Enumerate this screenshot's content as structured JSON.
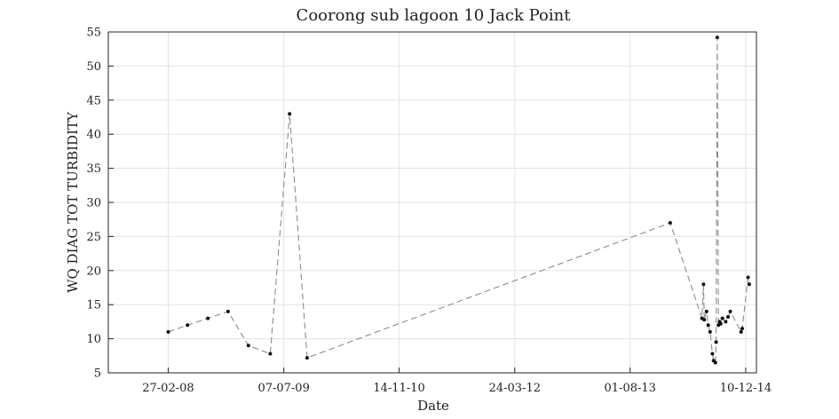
{
  "chart_data": {
    "type": "line",
    "title": "Coorong sub lagoon 10 Jack Point",
    "xlabel": "Date",
    "ylabel": "WQ DIAG TOT TURBIDITY",
    "xlim": [
      "2007-06-15",
      "2015-01-25"
    ],
    "ylim": [
      5,
      55
    ],
    "yticks": [
      5,
      10,
      15,
      20,
      25,
      30,
      35,
      40,
      45,
      50,
      55
    ],
    "xticks": [
      {
        "date": "2008-02-27",
        "label": "27-02-08"
      },
      {
        "date": "2009-07-07",
        "label": "07-07-09"
      },
      {
        "date": "2010-11-14",
        "label": "14-11-10"
      },
      {
        "date": "2012-03-24",
        "label": "24-03-12"
      },
      {
        "date": "2013-08-01",
        "label": "01-08-13"
      },
      {
        "date": "2014-12-10",
        "label": "10-12-14"
      }
    ],
    "grid": true,
    "line_style": "dashed",
    "line_color": "#8c8c8c",
    "marker_color": "#111111",
    "series": [
      {
        "x": [
          "2008-02-27",
          "2008-05-20",
          "2008-08-15",
          "2008-11-10",
          "2009-02-05",
          "2009-05-10",
          "2009-08-01",
          "2009-10-15",
          "2014-01-20",
          "2014-06-05",
          "2014-06-12",
          "2014-06-15",
          "2014-06-25",
          "2014-07-02",
          "2014-07-10",
          "2014-07-20",
          "2014-07-25",
          "2014-08-02",
          "2014-08-05",
          "2014-08-10",
          "2014-08-15",
          "2014-08-20",
          "2014-08-25",
          "2014-09-01",
          "2014-09-15",
          "2014-09-25",
          "2014-10-05",
          "2014-11-20",
          "2014-11-25",
          "2014-12-20",
          "2014-12-25"
        ],
        "y": [
          11,
          12,
          13,
          14,
          9,
          7.8,
          43,
          7.2,
          27,
          13,
          18,
          12.8,
          14,
          12,
          11,
          7.8,
          6.8,
          6.5,
          9.5,
          54.2,
          12,
          12.5,
          12.2,
          13,
          12.5,
          13.2,
          14,
          11,
          11.5,
          19,
          18
        ]
      }
    ]
  }
}
